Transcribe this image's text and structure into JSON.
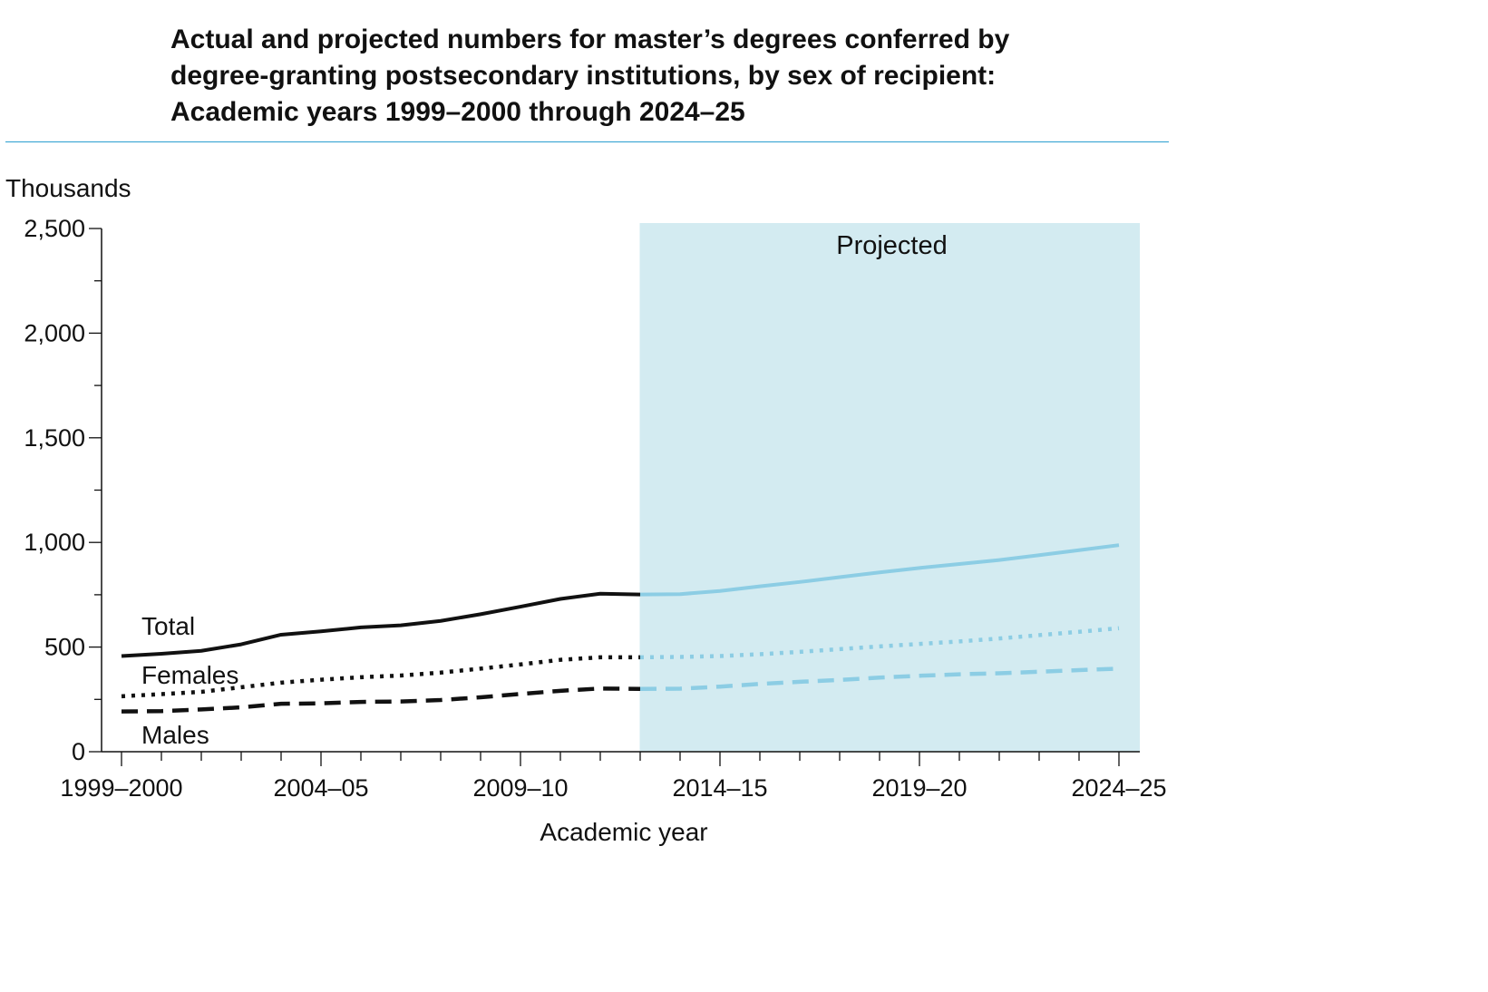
{
  "title_lines": [
    "Actual and projected numbers for master’s degrees conferred by",
    "degree-granting postsecondary institutions, by sex of recipient:",
    "Academic years 1999–2000 through 2024–25"
  ],
  "chart_data": {
    "type": "line",
    "title": "Actual and projected numbers for master’s degrees conferred by degree-granting postsecondary institutions, by sex of recipient: Academic years 1999–2000 through 2024–25",
    "ylabel": "Thousands",
    "xlabel": "Academic year",
    "ylim": [
      0,
      2500
    ],
    "y_ticks": [
      0,
      500,
      1000,
      1500,
      2000,
      2500
    ],
    "y_tick_labels": [
      "0",
      "500",
      "1,000",
      "1,500",
      "2,000",
      "2,500"
    ],
    "x": [
      "1999–2000",
      "2000–01",
      "2001–02",
      "2002–03",
      "2003–04",
      "2004–05",
      "2005–06",
      "2006–07",
      "2007–08",
      "2008–09",
      "2009–10",
      "2010–11",
      "2011–12",
      "2012–13",
      "2013–14",
      "2014–15",
      "2015–16",
      "2016–17",
      "2017–18",
      "2018–19",
      "2019–20",
      "2020–21",
      "2021–22",
      "2022–23",
      "2023–24",
      "2024–25"
    ],
    "x_tick_labels": [
      "1999–2000",
      "2004–05",
      "2009–10",
      "2014–15",
      "2019–20",
      "2024–25"
    ],
    "projected_region_label": "Projected",
    "projected_start": "2012–13",
    "grid": false,
    "series": [
      {
        "name": "Total",
        "style": "solid",
        "values": [
          457,
          468,
          482,
          513,
          559,
          575,
          594,
          604,
          625,
          657,
          693,
          730,
          755,
          751,
          753,
          768,
          790,
          811,
          834,
          857,
          878,
          897,
          916,
          939,
          963,
          987
        ]
      },
      {
        "name": "Females",
        "style": "dotted",
        "values": [
          265,
          275,
          286,
          308,
          330,
          344,
          356,
          364,
          378,
          397,
          417,
          439,
          451,
          451,
          453,
          457,
          466,
          477,
          490,
          503,
          515,
          527,
          541,
          557,
          573,
          590
        ]
      },
      {
        "name": "Males",
        "style": "dashed",
        "values": [
          192,
          194,
          202,
          212,
          229,
          231,
          238,
          240,
          247,
          260,
          276,
          291,
          302,
          300,
          301,
          311,
          324,
          334,
          343,
          354,
          363,
          370,
          375,
          382,
          390,
          397
        ]
      }
    ]
  },
  "colors": {
    "actual": "#111111",
    "projected_line": "#8ccde4",
    "projected_band": "#d3ebf1",
    "rule": "#2a9fd0"
  }
}
